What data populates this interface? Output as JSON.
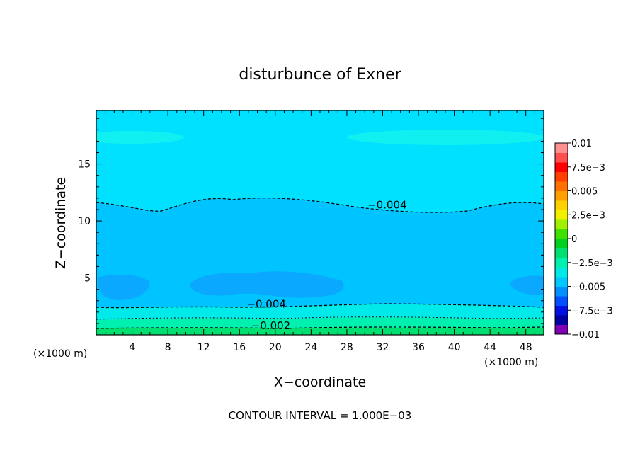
{
  "chart_data": {
    "type": "heatmap",
    "title": "disturbunce of Exner",
    "xlabel": "X−coordinate",
    "ylabel": "Z−coordinate",
    "x_unit_left": "(×1000 m)",
    "x_unit_right": "(×1000 m)",
    "footer": "CONTOUR INTERVAL = 1.000E−03",
    "xlim": [
      0,
      50
    ],
    "ylim": [
      0,
      19.7
    ],
    "xticks": [
      {
        "value": 4,
        "label": "4"
      },
      {
        "value": 8,
        "label": "8"
      },
      {
        "value": 12,
        "label": "12"
      },
      {
        "value": 16,
        "label": "16"
      },
      {
        "value": 20,
        "label": "20"
      },
      {
        "value": 24,
        "label": "24"
      },
      {
        "value": 28,
        "label": "28"
      },
      {
        "value": 32,
        "label": "32"
      },
      {
        "value": 36,
        "label": "36"
      },
      {
        "value": 40,
        "label": "40"
      },
      {
        "value": 44,
        "label": "44"
      },
      {
        "value": 48,
        "label": "48"
      }
    ],
    "yticks": [
      {
        "value": 5,
        "label": "5"
      },
      {
        "value": 10,
        "label": "10"
      },
      {
        "value": 15,
        "label": "15"
      }
    ],
    "colorbar": {
      "vmin": -0.01,
      "vmax": 0.01,
      "colors": [
        "#7f00b2",
        "#0000a0",
        "#0010e0",
        "#0050ff",
        "#0090ff",
        "#00c8ff",
        "#00e8e8",
        "#00f0b0",
        "#00e070",
        "#00d020",
        "#40e000",
        "#a0f000",
        "#f0f000",
        "#ffd000",
        "#ffa000",
        "#ff7000",
        "#ff4000",
        "#ff0000",
        "#ff5050",
        "#ff9090"
      ],
      "labels": [
        {
          "value": 0.01,
          "label": "0.01"
        },
        {
          "value": 0.0075,
          "label": "7.5e−3"
        },
        {
          "value": 0.005,
          "label": "0.005"
        },
        {
          "value": 0.0025,
          "label": "2.5e−3"
        },
        {
          "value": 0,
          "label": "0"
        },
        {
          "value": -0.0025,
          "label": "−2.5e−3"
        },
        {
          "value": -0.005,
          "label": "−0.005"
        },
        {
          "value": -0.0075,
          "label": "−7.5e−3"
        },
        {
          "value": -0.01,
          "label": "−0.01"
        }
      ]
    },
    "contour_labels": [
      {
        "x": 32.5,
        "z": 11.1,
        "label": "−0.004"
      },
      {
        "x": 19.0,
        "z": 2.4,
        "label": "−0.004"
      },
      {
        "x": 19.5,
        "z": 0.5,
        "label": "−0.002"
      }
    ]
  }
}
